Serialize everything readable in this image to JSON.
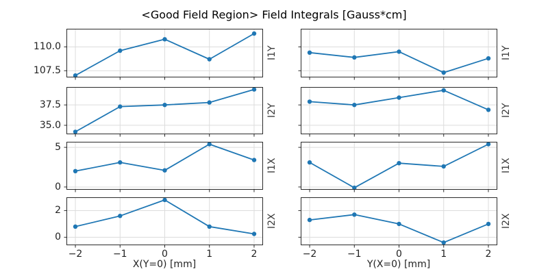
{
  "chart_data": {
    "type": "line",
    "title": "<Good Field Region> Field Integrals [Gauss*cm]",
    "line_color": "#1f77b4",
    "grid": true,
    "legend_position": "none",
    "x": [
      -2,
      -1,
      0,
      1,
      2
    ],
    "xlim": [
      -2.2,
      2.2
    ],
    "xticks": [
      {
        "value": -2,
        "label": "−2"
      },
      {
        "value": -1,
        "label": "−1"
      },
      {
        "value": 0,
        "label": "0"
      },
      {
        "value": 1,
        "label": "1"
      },
      {
        "value": 2,
        "label": "2"
      }
    ],
    "columns": [
      {
        "id": "x-scan",
        "xlabel": "X(Y=0) [mm]"
      },
      {
        "id": "y-scan",
        "xlabel": "Y(X=0) [mm]"
      }
    ],
    "rows": [
      {
        "label": "I1Y",
        "ylim": [
          106.8,
          111.9
        ],
        "yticks": [
          {
            "value": 107.5,
            "label": "107.5"
          },
          {
            "value": 110.0,
            "label": "110.0"
          }
        ],
        "series": [
          {
            "name": "I1Y vs X(Y=0)",
            "values": [
              107.0,
              109.6,
              110.8,
              108.7,
              111.4
            ]
          },
          {
            "name": "I1Y vs Y(X=0)",
            "values": [
              109.4,
              108.9,
              109.5,
              107.3,
              108.8
            ]
          }
        ]
      },
      {
        "label": "I2Y",
        "ylim": [
          33.9,
          39.7
        ],
        "yticks": [
          {
            "value": 35.0,
            "label": "35.0"
          },
          {
            "value": 37.5,
            "label": "37.5"
          }
        ],
        "series": [
          {
            "name": "I2Y vs X(Y=0)",
            "values": [
              34.2,
              37.3,
              37.5,
              37.8,
              39.4
            ]
          },
          {
            "name": "I2Y vs Y(X=0)",
            "values": [
              37.9,
              37.5,
              38.4,
              39.3,
              36.9
            ]
          }
        ]
      },
      {
        "label": "I1X",
        "ylim": [
          -0.35,
          5.7
        ],
        "yticks": [
          {
            "value": 0,
            "label": "0"
          },
          {
            "value": 5,
            "label": "5"
          }
        ],
        "series": [
          {
            "name": "I1X vs X(Y=0)",
            "values": [
              2.0,
              3.1,
              2.1,
              5.4,
              3.4
            ]
          },
          {
            "name": "I1X vs Y(X=0)",
            "values": [
              3.1,
              -0.1,
              3.0,
              2.6,
              5.4
            ]
          }
        ]
      },
      {
        "label": "I2X",
        "ylim": [
          -0.6,
          3.0
        ],
        "yticks": [
          {
            "value": 0,
            "label": "0"
          },
          {
            "value": 2,
            "label": "2"
          }
        ],
        "series": [
          {
            "name": "I2X vs X(Y=0)",
            "values": [
              0.8,
              1.6,
              2.8,
              0.8,
              0.25
            ]
          },
          {
            "name": "I2X vs Y(X=0)",
            "values": [
              1.3,
              1.7,
              1.0,
              -0.4,
              1.0
            ]
          }
        ]
      }
    ],
    "colors": {
      "line": "#1f77b4",
      "grid": "#dcdcdc",
      "spine": "#2a2a2a",
      "background": "#ffffff"
    }
  }
}
